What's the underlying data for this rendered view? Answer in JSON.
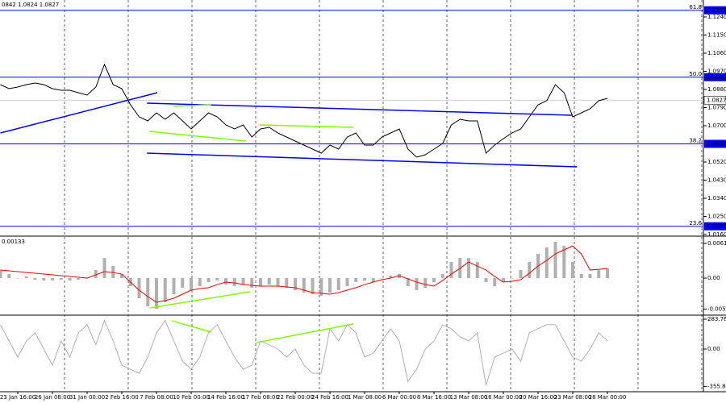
{
  "chart_data": [
    {
      "type": "line",
      "title": "0842 1.0824 1.0827",
      "color": "#000000",
      "values": [
        1.0904,
        1.0884,
        1.0892,
        1.0904,
        1.0912,
        1.0904,
        1.0884,
        1.0876,
        1.0876,
        1.0864,
        1.0852,
        1.0892,
        1.1004,
        1.0904,
        1.0884,
        1.0804,
        1.0744,
        1.0724,
        1.0764,
        1.0732,
        1.0764,
        1.0724,
        1.0684,
        1.0724,
        1.0764,
        1.0744,
        1.0704,
        1.0684,
        1.0704,
        1.0644,
        1.0684,
        1.0692,
        1.0664,
        1.0644,
        1.0624,
        1.0604,
        1.0584,
        1.0564,
        1.0604,
        1.0584,
        1.0644,
        1.0664,
        1.0604,
        1.0604,
        1.0644,
        1.0664,
        1.0684,
        1.0584,
        1.0544,
        1.0556,
        1.0584,
        1.0612,
        1.0704,
        1.0732,
        1.0724,
        1.0724,
        1.0564,
        1.0604,
        1.0636,
        1.0664,
        1.0684,
        1.0744,
        1.0804,
        1.0824,
        1.0904,
        1.0864,
        1.0744,
        1.0764,
        1.0784,
        1.0824,
        1.0836
      ],
      "ylim": [
        1.0156,
        1.1324
      ],
      "yticks": [
        {
          "value": 1.124,
          "label": "1.1240"
        },
        {
          "value": 1.115,
          "label": "1.1150"
        },
        {
          "value": 1.106,
          "label": "1.1060"
        },
        {
          "value": 1.097,
          "label": "1.0970"
        },
        {
          "value": 1.088,
          "label": "1.0880"
        },
        {
          "value": 1.079,
          "label": "1.0790"
        },
        {
          "value": 1.07,
          "label": "1.0700"
        },
        {
          "value": 1.052,
          "label": "1.0520"
        },
        {
          "value": 1.043,
          "label": "1.0430"
        },
        {
          "value": 1.034,
          "label": "1.0340"
        },
        {
          "value": 1.025,
          "label": "1.0250"
        },
        {
          "value": 1.016,
          "label": "1.0160"
        }
      ],
      "levels": [
        {
          "value": 1.1273,
          "ratio": "61.8",
          "price_label": "1.1273"
        },
        {
          "value": 1.0941,
          "ratio": "50.0",
          "price_label": "1.0941"
        },
        {
          "value": 1.061,
          "ratio": "38.2",
          "price_label": "1.0610"
        },
        {
          "value": 1.0201,
          "ratio": "23.6",
          "price_label": "1.0201"
        }
      ],
      "level_color": "#0000ff",
      "last_price": 1.0827,
      "trendlines": [
        {
          "x": [
            0,
            18.1
          ],
          "y": [
            1.0664,
            1.0864
          ],
          "color": "#0000ff"
        },
        {
          "x": [
            16.9,
            66
          ],
          "y": [
            1.0812,
            1.0752
          ],
          "color": "#0000ff"
        },
        {
          "x": [
            16.9,
            66.5
          ],
          "y": [
            1.0564,
            1.0496
          ],
          "color": "#0000ff"
        },
        {
          "x": [
            17.2,
            28.3
          ],
          "y": [
            1.0672,
            1.0624
          ],
          "color": "#7fff00"
        },
        {
          "x": [
            20,
            24.3
          ],
          "y": [
            1.0796,
            1.0804
          ],
          "color": "#7fff00"
        },
        {
          "x": [
            29.9,
            40.7
          ],
          "y": [
            1.0704,
            1.0692
          ],
          "color": "#7fff00"
        }
      ]
    },
    {
      "type": "bar",
      "title": "0.00133",
      "color": "#b0b0b0",
      "values": [
        0.00142,
        0.00071,
        0,
        0.00028,
        -0.00028,
        -0.00043,
        -0.00043,
        -0.00028,
        -0.00043,
        -0.00028,
        0,
        0.00142,
        0.00355,
        0.00213,
        0.00071,
        -0.00142,
        -0.00355,
        -0.00497,
        -0.0054,
        -0.00426,
        -0.00284,
        -0.0017,
        -0.00213,
        -0.00142,
        -0.00071,
        -0.00043,
        -0.00114,
        -0.00142,
        -0.00114,
        -0.0017,
        -0.00142,
        -0.00114,
        -0.00142,
        -0.0017,
        -0.00213,
        -0.00256,
        -0.00284,
        -0.00312,
        -0.00256,
        -0.00213,
        -0.00142,
        -0.00071,
        -0.00043,
        -0.00071,
        0,
        0.00043,
        0.00071,
        -0.00142,
        -0.00213,
        -0.0017,
        -0.00071,
        0.00071,
        0.00284,
        0.00355,
        0.00355,
        0.00284,
        -0.00071,
        -0.00142,
        -0.00071,
        0,
        0.00142,
        0.00284,
        0.00426,
        0.0054,
        0.00639,
        0.00568,
        0.00284,
        0.00071,
        0.00071,
        0.00142,
        0.0017
      ],
      "signal": {
        "color": "#ff0000",
        "values": [
          0.00142,
          0.00128,
          0.00114,
          0.00099,
          0.00085,
          0.00071,
          0.00057,
          0.00043,
          0.00028,
          0.00014,
          0,
          0.00057,
          0.00114,
          0.00099,
          0.00071,
          -0.00071,
          -0.00213,
          -0.00327,
          -0.00426,
          -0.00398,
          -0.00355,
          -0.00284,
          -0.00213,
          -0.00185,
          -0.0017,
          -0.00114,
          -0.00071,
          -0.00085,
          -0.00114,
          -0.00128,
          -0.00142,
          -0.00142,
          -0.00142,
          -0.00156,
          -0.0017,
          -0.00213,
          -0.00256,
          -0.0027,
          -0.00284,
          -0.00256,
          -0.00213,
          -0.0017,
          -0.00114,
          -0.00071,
          -0.00028,
          0,
          0.00043,
          -0.00014,
          -0.00071,
          -0.00114,
          -0.00142,
          -0.00043,
          0.00071,
          0.0017,
          0.00284,
          0.00213,
          0.00142,
          0.00028,
          -0.00071,
          -0.00057,
          -0.00028,
          0.00085,
          0.00213,
          0.00312,
          0.00426,
          0.00497,
          0.00568,
          0.00426,
          0.00142,
          0.00156,
          0.0017
        ]
      },
      "ylim": [
        -0.0064,
        0.00712
      ],
      "yticks": [
        0.00612,
        {
          "value": 0,
          "label": "0.00"
        },
        -0.00547
      ],
      "trendlines": [
        {
          "x": [
            17.2,
            28.8
          ],
          "y": [
            -0.00527,
            -0.00242
          ],
          "color": "#7fff00"
        }
      ]
    },
    {
      "type": "line",
      "color": "#b0b0b0",
      "values": [
        231,
        77,
        -77,
        77,
        154,
        0,
        -154,
        77,
        -77,
        154,
        231,
        39,
        270,
        77,
        -154,
        -193,
        -231,
        -77,
        154,
        270,
        77,
        -116,
        -193,
        -77,
        154,
        231,
        77,
        -77,
        -193,
        -154,
        77,
        39,
        0,
        -77,
        0,
        -154,
        -231,
        -231,
        193,
        77,
        231,
        154,
        -77,
        -39,
        77,
        193,
        77,
        -308,
        -193,
        0,
        77,
        231,
        193,
        116,
        77,
        154,
        -347,
        -77,
        -39,
        0,
        -116,
        154,
        193,
        231,
        231,
        77,
        -77,
        -116,
        0,
        154,
        77
      ],
      "ylim": [
        -398.8,
        314.5
      ],
      "yticks": [
        283.7669,
        {
          "value": 0,
          "label": "0.00"
        },
        -355.8804
      ],
      "trendlines": [
        {
          "x": [
            19.8,
            24.3
          ],
          "y": [
            268,
            161
          ],
          "color": "#7fff00"
        },
        {
          "x": [
            29.5,
            40.7
          ],
          "y": [
            61,
            238
          ],
          "color": "#7fff00"
        }
      ],
      "categories": [
        null,
        null,
        "23 Jan 16:00",
        null,
        null,
        null,
        "26 Jan 08:00",
        null,
        null,
        null,
        "31 Jan 00:00",
        null,
        null,
        null,
        "2 Feb 16:00",
        null,
        null,
        null,
        "7 Feb 08:00",
        null,
        null,
        null,
        "10 Feb 00:00",
        null,
        null,
        null,
        "14 Feb 16:00",
        null,
        null,
        null,
        "17 Feb 08:00",
        null,
        null,
        null,
        "22 Feb 00:00",
        null,
        null,
        null,
        "24 Feb 16:00",
        null,
        null,
        null,
        "1 Mar 08:00",
        null,
        null,
        null,
        "6 Mar 00:00",
        null,
        null,
        null,
        "8 Mar 16:00",
        null,
        null,
        null,
        "13 Mar 08:00",
        null,
        null,
        null,
        "16 Mar 00:00",
        null,
        null,
        null,
        "20 Mar 16:00",
        null,
        null,
        null,
        "23 Mar 08:00",
        null,
        null,
        null,
        "28 Mar 00:00"
      ]
    }
  ]
}
